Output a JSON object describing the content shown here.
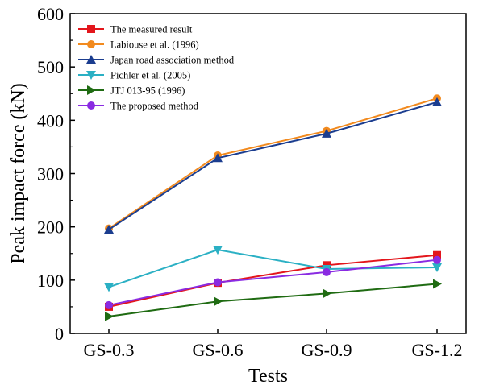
{
  "chart_data": {
    "type": "line",
    "categories": [
      "GS-0.3",
      "GS-0.6",
      "GS-0.9",
      "GS-1.2"
    ],
    "xlabel": "Tests",
    "ylabel": "Peak impact force (kN)",
    "ylim": [
      0,
      600
    ],
    "yticks": [
      0,
      100,
      200,
      300,
      400,
      500,
      600
    ],
    "grid": false,
    "legend_position": "top-left",
    "series": [
      {
        "name": "The measured result",
        "color": "#e3161c",
        "marker": "square",
        "values": [
          50,
          95,
          128,
          147
        ]
      },
      {
        "name": "Labiouse et al. (1996)",
        "color": "#f28a1e",
        "marker": "circle",
        "values": [
          197,
          334,
          380,
          441
        ]
      },
      {
        "name": "Japan road association method",
        "color": "#1b3d8f",
        "marker": "triangle-up",
        "values": [
          195,
          329,
          375,
          434
        ]
      },
      {
        "name": "Pichler et al. (2005)",
        "color": "#2bb0c4",
        "marker": "triangle-down",
        "values": [
          87,
          157,
          121,
          124
        ]
      },
      {
        "name": "JTJ 013-95 (1996)",
        "color": "#1f6b12",
        "marker": "triangle-right",
        "values": [
          32,
          60,
          75,
          93
        ]
      },
      {
        "name": "The proposed method",
        "color": "#8a2be2",
        "marker": "circle",
        "values": [
          53,
          96,
          115,
          138
        ]
      }
    ]
  }
}
